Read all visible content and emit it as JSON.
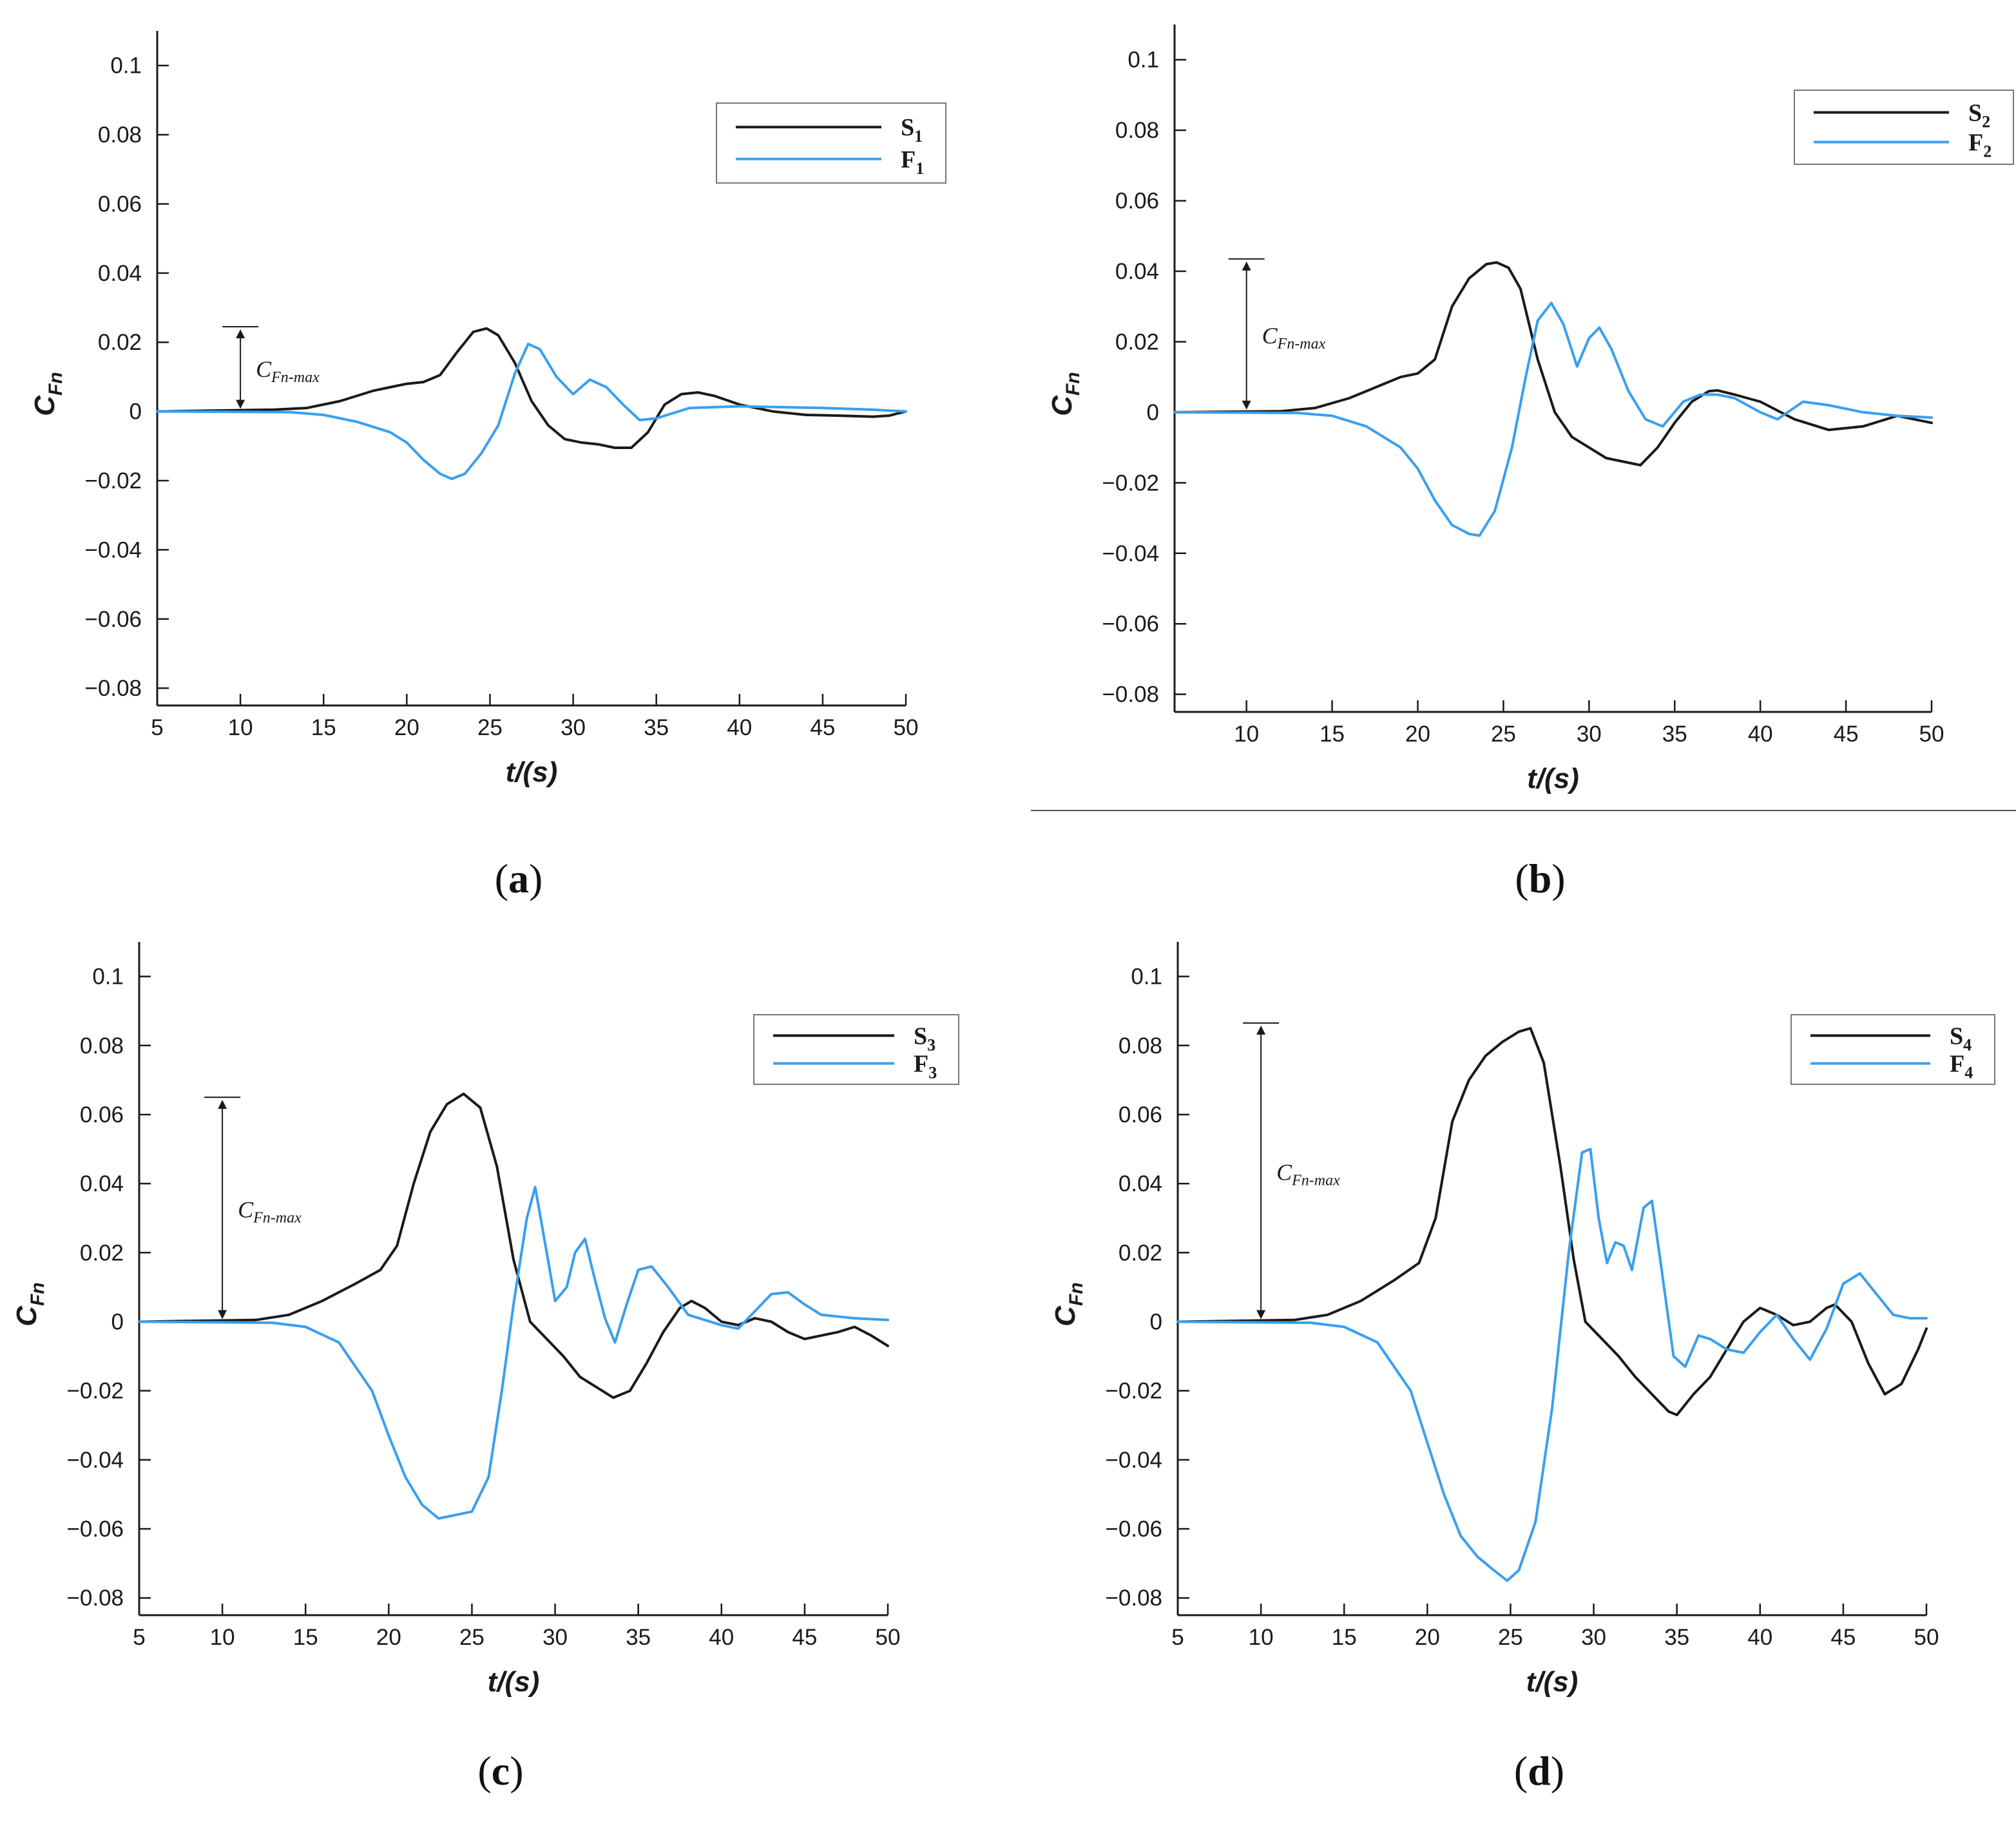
{
  "divider_color": "#555555",
  "chart_data": [
    {
      "type": "line",
      "panel_label": "a",
      "xlabel": "t/(s)",
      "ylabel_main": "C",
      "ylabel_sub": "Fn",
      "xlim": [
        5,
        50
      ],
      "ylim": [
        -0.085,
        0.11
      ],
      "xticks": [
        5,
        10,
        15,
        20,
        25,
        30,
        35,
        40,
        45,
        50
      ],
      "yticks": [
        -0.08,
        -0.06,
        -0.04,
        -0.02,
        0,
        0.02,
        0.04,
        0.06,
        0.08,
        0.1
      ],
      "ytick_labels": [
        "−0.08",
        "−0.06",
        "−0.04",
        "−0.02",
        "0",
        "0.02",
        "0.04",
        "0.06",
        "0.08",
        "0.1"
      ],
      "grid": false,
      "legend_position": "top-right",
      "annotation": {
        "main": "C",
        "sub": "Fn-max",
        "x": 10,
        "y_from": 0,
        "y_to": 0.0245
      },
      "series": [
        {
          "name": "S",
          "sub": "1",
          "color": "#1a1a1a",
          "x": [
            5,
            12,
            14,
            16,
            18,
            19,
            20,
            21,
            22,
            23,
            24,
            24.8,
            25.5,
            26.5,
            27.5,
            28.5,
            29.5,
            30.5,
            31.5,
            32.5,
            33.5,
            34.5,
            35.5,
            36.5,
            37.5,
            38.5,
            40,
            42,
            44,
            46,
            48,
            49,
            50
          ],
          "y": [
            0,
            0.0005,
            0.001,
            0.003,
            0.006,
            0.007,
            0.008,
            0.0085,
            0.0105,
            0.017,
            0.023,
            0.024,
            0.022,
            0.014,
            0.003,
            -0.004,
            -0.008,
            -0.009,
            -0.0095,
            -0.0105,
            -0.0105,
            -0.006,
            0.002,
            0.005,
            0.0055,
            0.0045,
            0.002,
            0,
            -0.001,
            -0.0012,
            -0.0015,
            -0.0012,
            0
          ]
        },
        {
          "name": "F",
          "sub": "1",
          "color": "#3b9fee",
          "x": [
            5,
            13,
            15,
            17,
            19,
            20,
            21,
            22,
            22.7,
            23.5,
            24.5,
            25.5,
            26.5,
            27.3,
            28,
            29,
            30,
            31,
            32,
            33,
            34,
            35,
            37,
            40,
            45,
            48,
            50
          ],
          "y": [
            0,
            -0.0002,
            -0.001,
            -0.003,
            -0.006,
            -0.009,
            -0.014,
            -0.018,
            -0.0195,
            -0.018,
            -0.012,
            -0.004,
            0.011,
            0.0195,
            0.018,
            0.01,
            0.005,
            0.0092,
            0.007,
            0.002,
            -0.0025,
            -0.002,
            0.001,
            0.0015,
            0.001,
            0.0005,
            0
          ]
        }
      ]
    },
    {
      "type": "line",
      "panel_label": "b",
      "xlabel": "t/(s)",
      "ylabel_main": "C",
      "ylabel_sub": "Fn",
      "xlim": [
        5.8,
        50
      ],
      "ylim": [
        -0.085,
        0.11
      ],
      "xticks": [
        10,
        15,
        20,
        25,
        30,
        35,
        40,
        45,
        50
      ],
      "yticks": [
        -0.08,
        -0.06,
        -0.04,
        -0.02,
        0,
        0.02,
        0.04,
        0.06,
        0.08,
        0.1
      ],
      "ytick_labels": [
        "−0.08",
        "−0.06",
        "−0.04",
        "−0.02",
        "0",
        "0.02",
        "0.04",
        "0.06",
        "0.08",
        "0.1"
      ],
      "grid": false,
      "legend_position": "top-right",
      "annotation": {
        "main": "C",
        "sub": "Fn-max",
        "x": 10,
        "y_from": 0,
        "y_to": 0.0435
      },
      "series": [
        {
          "name": "S",
          "sub": "2",
          "color": "#1a1a1a",
          "x": [
            5.8,
            12,
            14,
            16,
            18,
            19,
            20,
            21,
            22,
            23,
            24,
            24.6,
            25.3,
            26,
            27,
            28,
            29,
            30,
            31,
            32,
            33,
            34,
            35,
            36,
            37,
            37.5,
            38.5,
            40,
            42,
            44,
            46,
            48,
            50
          ],
          "y": [
            0,
            0.0003,
            0.0012,
            0.004,
            0.008,
            0.01,
            0.011,
            0.015,
            0.03,
            0.038,
            0.042,
            0.0425,
            0.041,
            0.035,
            0.015,
            0,
            -0.007,
            -0.01,
            -0.013,
            -0.014,
            -0.015,
            -0.01,
            -0.003,
            0.003,
            0.006,
            0.0062,
            0.005,
            0.003,
            -0.002,
            -0.005,
            -0.004,
            -0.001,
            -0.003
          ]
        },
        {
          "name": "F",
          "sub": "2",
          "color": "#3b9fee",
          "x": [
            5.8,
            13,
            15,
            17,
            19,
            20,
            21,
            22,
            23,
            23.6,
            24.5,
            25.5,
            26.3,
            27,
            27.8,
            28.5,
            29.3,
            30,
            30.6,
            31.3,
            32.3,
            33.3,
            34.3,
            35.5,
            36.5,
            37.5,
            38.5,
            40,
            41,
            42.5,
            44,
            46,
            48,
            50
          ],
          "y": [
            0,
            -0.0002,
            -0.001,
            -0.004,
            -0.01,
            -0.016,
            -0.025,
            -0.032,
            -0.0345,
            -0.035,
            -0.028,
            -0.01,
            0.01,
            0.026,
            0.031,
            0.025,
            0.013,
            0.021,
            0.024,
            0.018,
            0.006,
            -0.002,
            -0.004,
            0.003,
            0.005,
            0.005,
            0.004,
            0,
            -0.002,
            0.003,
            0.002,
            0,
            -0.001,
            -0.0015
          ]
        }
      ]
    },
    {
      "type": "line",
      "panel_label": "c",
      "xlabel": "t/(s)",
      "ylabel_main": "C",
      "ylabel_sub": "Fn",
      "xlim": [
        5,
        50
      ],
      "ylim": [
        -0.085,
        0.11
      ],
      "xticks": [
        5,
        10,
        15,
        20,
        25,
        30,
        35,
        40,
        45,
        50
      ],
      "yticks": [
        -0.08,
        -0.06,
        -0.04,
        -0.02,
        0,
        0.02,
        0.04,
        0.06,
        0.08,
        0.1
      ],
      "ytick_labels": [
        "−0.08",
        "−0.06",
        "−0.04",
        "−0.02",
        "0",
        "0.02",
        "0.04",
        "0.06",
        "0.08",
        "0.1"
      ],
      "grid": false,
      "legend_position": "top-right",
      "annotation": {
        "main": "C",
        "sub": "Fn-max",
        "x": 10,
        "y_from": 0,
        "y_to": 0.065
      },
      "series": [
        {
          "name": "S",
          "sub": "3",
          "color": "#1a1a1a",
          "x": [
            5,
            12,
            14,
            16,
            18,
            19.5,
            20.5,
            21.5,
            22.5,
            23.5,
            24.5,
            25.5,
            26.5,
            27.5,
            28.5,
            29.5,
            30.5,
            31.5,
            32.5,
            33.5,
            34.5,
            35.5,
            36.5,
            37.5,
            38.2,
            39,
            40,
            41,
            42,
            43,
            44,
            45,
            46,
            47,
            48,
            49,
            50
          ],
          "y": [
            0,
            0.0005,
            0.002,
            0.006,
            0.011,
            0.015,
            0.022,
            0.04,
            0.055,
            0.063,
            0.066,
            0.062,
            0.045,
            0.018,
            0,
            -0.005,
            -0.01,
            -0.016,
            -0.019,
            -0.022,
            -0.02,
            -0.012,
            -0.003,
            0.004,
            0.006,
            0.004,
            0,
            -0.001,
            0.001,
            0,
            -0.003,
            -0.005,
            -0.004,
            -0.003,
            -0.0015,
            -0.004,
            -0.007
          ]
        },
        {
          "name": "F",
          "sub": "3",
          "color": "#3b9fee",
          "x": [
            5,
            13,
            15,
            17,
            19,
            20,
            21,
            22,
            23,
            24,
            25,
            26,
            26.8,
            27.5,
            28.3,
            28.8,
            29.5,
            30,
            30.7,
            31.2,
            31.8,
            32.3,
            33,
            33.6,
            34.3,
            35,
            35.8,
            36.8,
            38,
            40,
            41,
            42,
            43,
            44,
            45,
            46,
            48,
            50
          ],
          "y": [
            0,
            -0.0003,
            -0.0015,
            -0.006,
            -0.02,
            -0.033,
            -0.045,
            -0.053,
            -0.057,
            -0.056,
            -0.055,
            -0.045,
            -0.02,
            0.005,
            0.03,
            0.039,
            0.02,
            0.006,
            0.01,
            0.02,
            0.024,
            0.014,
            0.001,
            -0.006,
            0.005,
            0.015,
            0.016,
            0.01,
            0.002,
            -0.001,
            -0.002,
            0.003,
            0.008,
            0.0085,
            0.005,
            0.002,
            0.001,
            0.0005
          ]
        }
      ]
    },
    {
      "type": "line",
      "panel_label": "d",
      "xlabel": "t/(s)",
      "ylabel_main": "C",
      "ylabel_sub": "Fn",
      "xlim": [
        5,
        50
      ],
      "ylim": [
        -0.085,
        0.11
      ],
      "xticks": [
        5,
        10,
        15,
        20,
        25,
        30,
        35,
        40,
        45,
        50
      ],
      "yticks": [
        -0.08,
        -0.06,
        -0.04,
        -0.02,
        0,
        0.02,
        0.04,
        0.06,
        0.08,
        0.1
      ],
      "ytick_labels": [
        "−0.08",
        "−0.06",
        "−0.04",
        "−0.02",
        "0",
        "0.02",
        "0.04",
        "0.06",
        "0.08",
        "0.1"
      ],
      "grid": false,
      "legend_position": "top-right",
      "annotation": {
        "main": "C",
        "sub": "Fn-max",
        "x": 10,
        "y_from": 0,
        "y_to": 0.0865
      },
      "series": [
        {
          "name": "S",
          "sub": "4",
          "color": "#1a1a1a",
          "x": [
            5,
            12,
            14,
            16,
            18,
            19.5,
            20.5,
            21.5,
            22.5,
            23.5,
            24.5,
            25.5,
            26.2,
            27,
            28,
            28.8,
            29.5,
            30.5,
            31.5,
            32.5,
            33.5,
            34.5,
            35,
            36,
            37,
            38,
            39,
            40,
            41,
            42,
            43,
            44,
            44.5,
            45.5,
            46.5,
            47.5,
            48.5,
            49.5,
            50
          ],
          "y": [
            0,
            0.0005,
            0.002,
            0.006,
            0.012,
            0.017,
            0.03,
            0.058,
            0.07,
            0.077,
            0.081,
            0.084,
            0.085,
            0.075,
            0.045,
            0.018,
            0,
            -0.005,
            -0.01,
            -0.016,
            -0.021,
            -0.026,
            -0.027,
            -0.021,
            -0.016,
            -0.008,
            0,
            0.004,
            0.002,
            -0.001,
            0,
            0.004,
            0.005,
            0,
            -0.012,
            -0.021,
            -0.018,
            -0.008,
            -0.002
          ]
        },
        {
          "name": "F",
          "sub": "4",
          "color": "#3b9fee",
          "x": [
            5,
            13,
            15,
            17,
            19,
            20,
            21,
            22,
            23,
            24,
            24.8,
            25.5,
            26.5,
            27.5,
            28.5,
            29.3,
            29.8,
            30.3,
            30.8,
            31.3,
            31.8,
            32.3,
            33,
            33.5,
            34,
            34.8,
            35.5,
            36.3,
            37,
            38,
            39,
            40,
            41,
            42,
            43,
            44,
            45,
            46,
            47,
            48,
            49,
            50
          ],
          "y": [
            0,
            -0.0003,
            -0.0015,
            -0.006,
            -0.02,
            -0.035,
            -0.05,
            -0.062,
            -0.068,
            -0.072,
            -0.075,
            -0.072,
            -0.058,
            -0.025,
            0.02,
            0.049,
            0.05,
            0.03,
            0.017,
            0.023,
            0.022,
            0.015,
            0.033,
            0.035,
            0.018,
            -0.01,
            -0.013,
            -0.004,
            -0.005,
            -0.008,
            -0.009,
            -0.003,
            0.002,
            -0.005,
            -0.011,
            -0.002,
            0.011,
            0.014,
            0.008,
            0.002,
            0.001,
            0.001
          ]
        }
      ]
    }
  ]
}
